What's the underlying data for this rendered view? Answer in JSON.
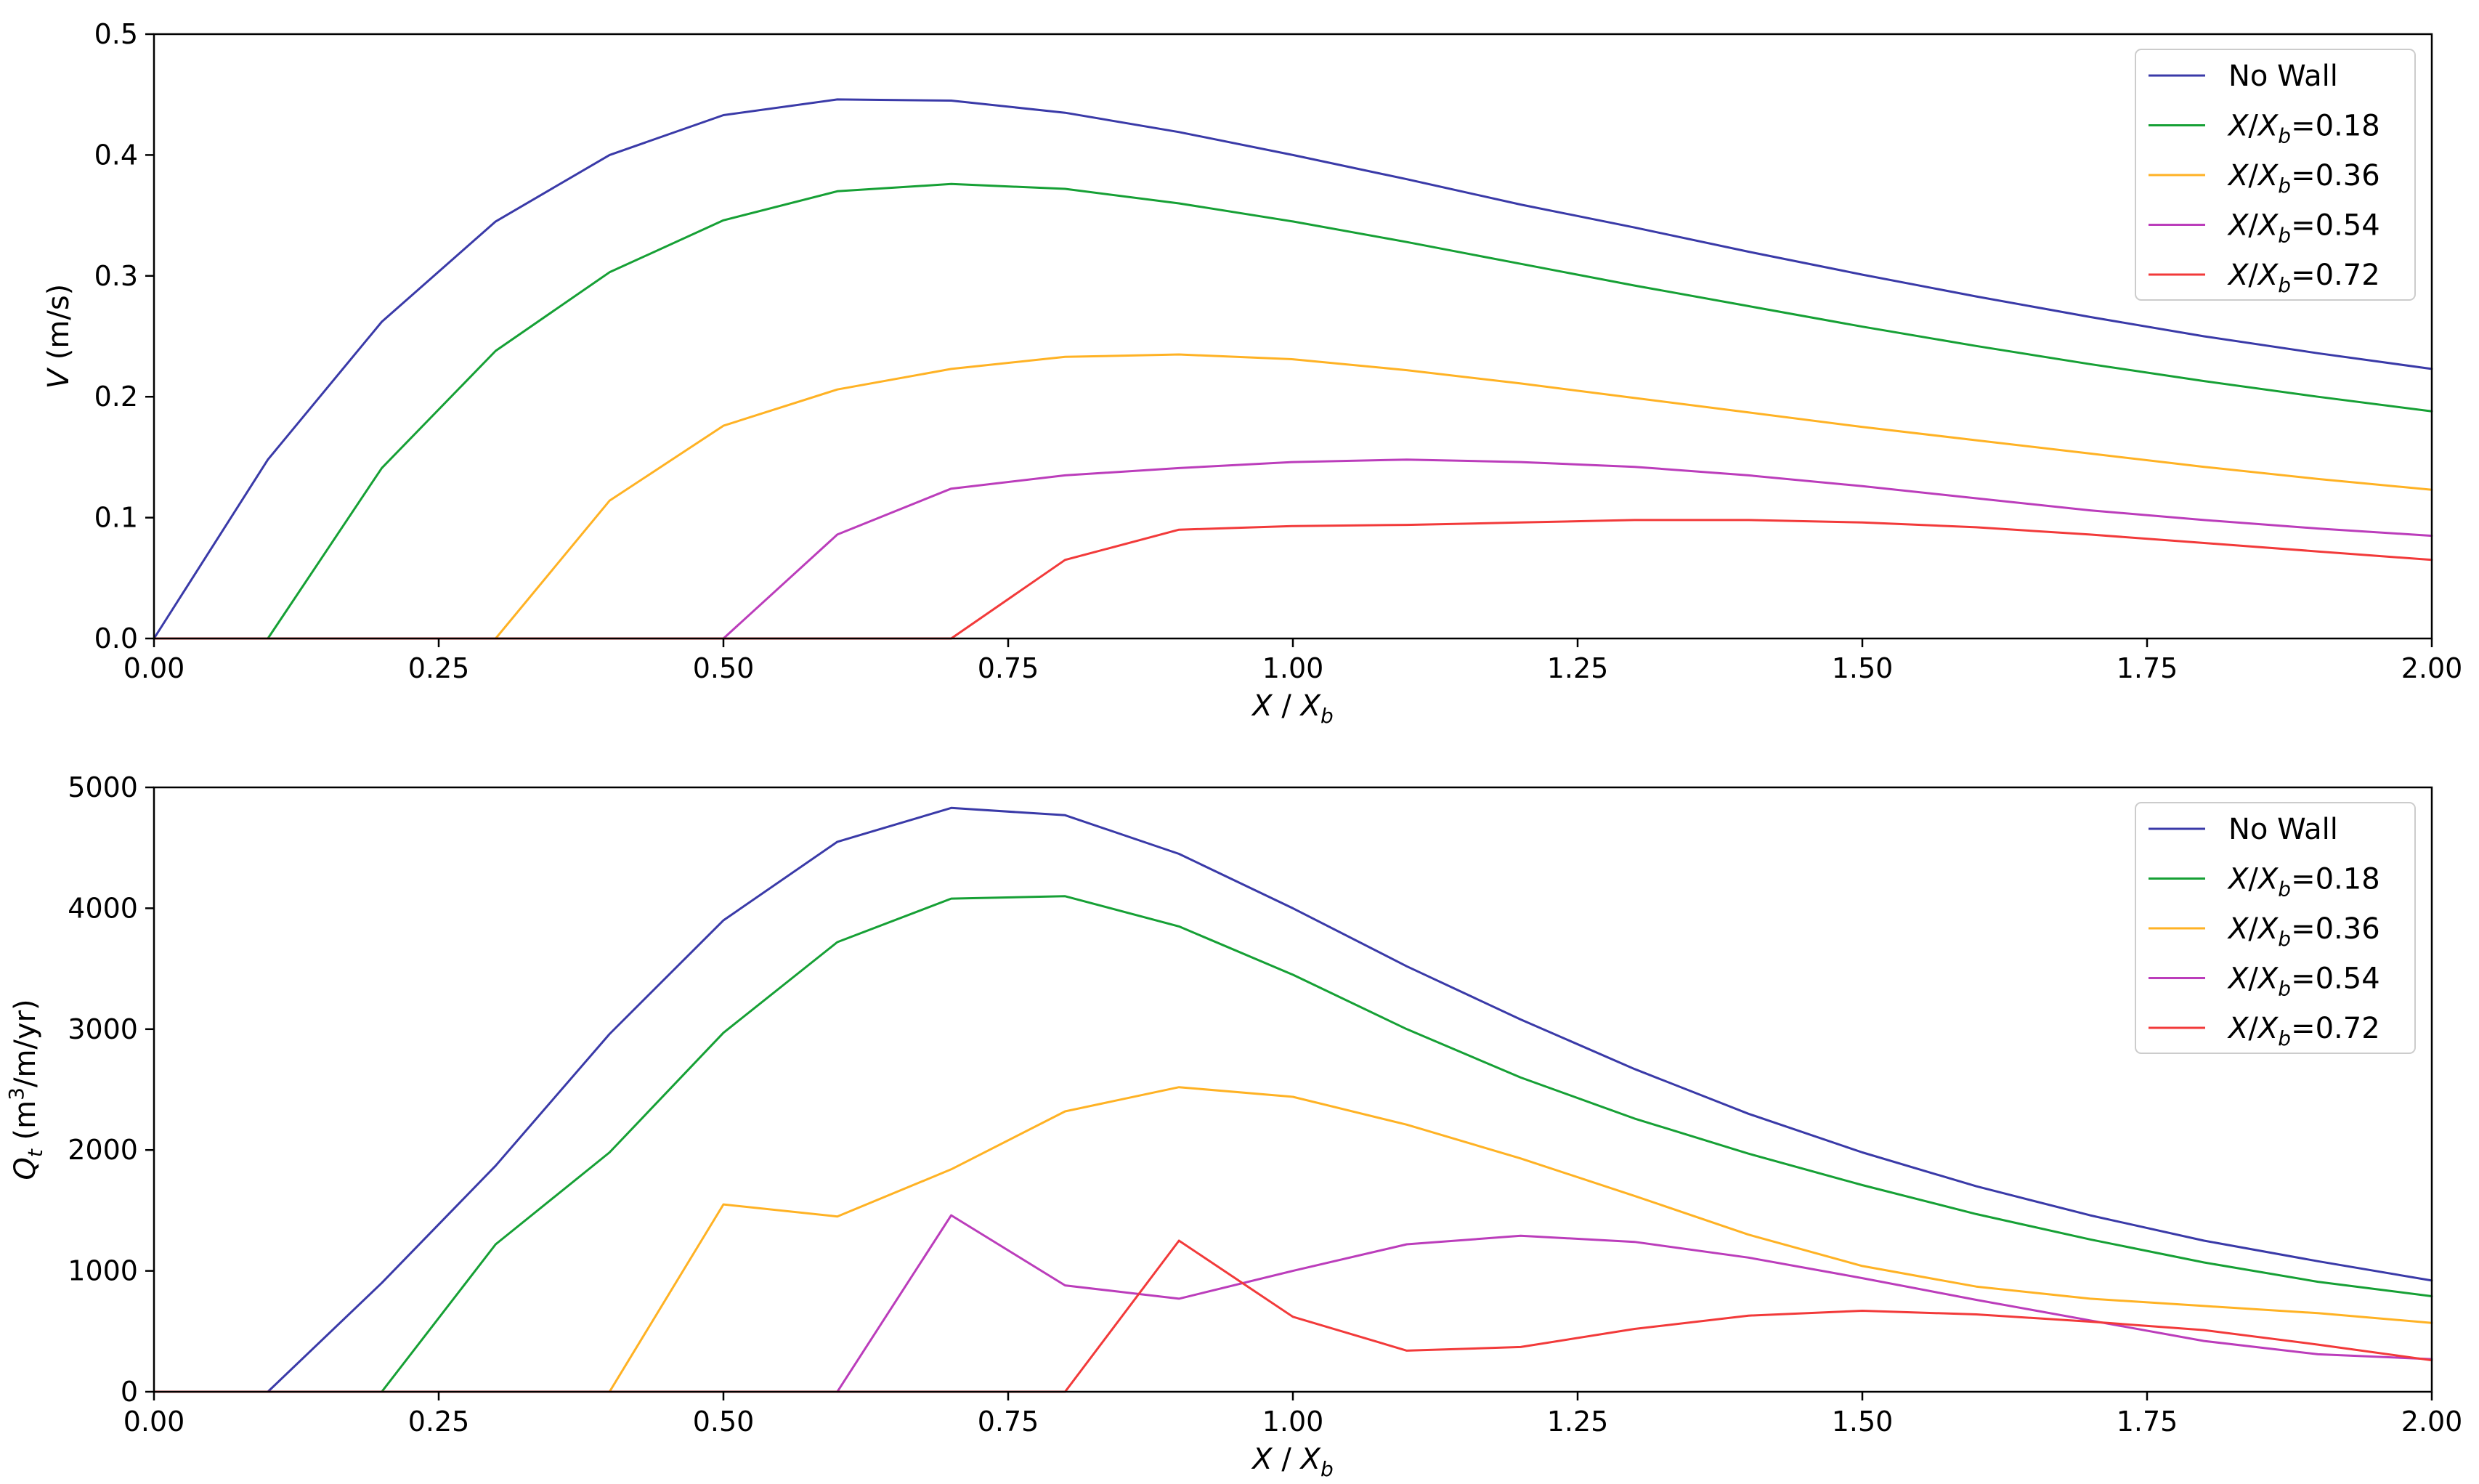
{
  "chart_data": [
    {
      "type": "line",
      "xlabel": "X / X_b",
      "ylabel": "V (m/s)",
      "xlim": [
        0,
        2
      ],
      "ylim": [
        0,
        0.5
      ],
      "xticks": [
        "0.00",
        "0.25",
        "0.50",
        "0.75",
        "1.00",
        "1.25",
        "1.50",
        "1.75",
        "2.00"
      ],
      "yticks": [
        "0.0",
        "0.1",
        "0.2",
        "0.3",
        "0.4",
        "0.5"
      ],
      "grid": false,
      "legend_position": "top-right",
      "x": [
        0.0,
        0.1,
        0.2,
        0.3,
        0.4,
        0.5,
        0.6,
        0.7,
        0.8,
        0.9,
        1.0,
        1.1,
        1.2,
        1.3,
        1.4,
        1.5,
        1.6,
        1.7,
        1.8,
        1.9,
        2.0
      ],
      "series": [
        {
          "name": "No Wall",
          "color": "#3a3aa8",
          "values": [
            0.0,
            0.148,
            0.262,
            0.345,
            0.4,
            0.433,
            0.446,
            0.445,
            0.435,
            0.419,
            0.4,
            0.38,
            0.359,
            0.34,
            0.32,
            0.301,
            0.283,
            0.266,
            0.25,
            0.236,
            0.223
          ]
        },
        {
          "name": "X/X_b=0.18",
          "color": "#16a035",
          "values": [
            0.0,
            0.0,
            0.141,
            0.238,
            0.303,
            0.346,
            0.37,
            0.376,
            0.372,
            0.36,
            0.345,
            0.328,
            0.31,
            0.292,
            0.275,
            0.258,
            0.242,
            0.227,
            0.213,
            0.2,
            0.188
          ]
        },
        {
          "name": "X/X_b=0.36",
          "color": "#ffb224",
          "values": [
            0.0,
            0.0,
            0.0,
            0.0,
            0.114,
            0.176,
            0.206,
            0.223,
            0.233,
            0.235,
            0.231,
            0.222,
            0.211,
            0.199,
            0.187,
            0.175,
            0.164,
            0.153,
            0.142,
            0.132,
            0.123
          ]
        },
        {
          "name": "X/X_b=0.54",
          "color": "#bb3dbb",
          "values": [
            0.0,
            0.0,
            0.0,
            0.0,
            0.0,
            0.0,
            0.086,
            0.124,
            0.135,
            0.141,
            0.146,
            0.148,
            0.146,
            0.142,
            0.135,
            0.126,
            0.116,
            0.106,
            0.098,
            0.091,
            0.085
          ]
        },
        {
          "name": "X/X_b=0.72",
          "color": "#f23a3a",
          "values": [
            0.0,
            0.0,
            0.0,
            0.0,
            0.0,
            0.0,
            0.0,
            0.0,
            0.065,
            0.09,
            0.093,
            0.094,
            0.096,
            0.098,
            0.098,
            0.096,
            0.092,
            0.086,
            0.079,
            0.072,
            0.065
          ]
        }
      ]
    },
    {
      "type": "line",
      "xlabel": "X / X_b",
      "ylabel": "Q_t (m^3/m/yr)",
      "xlim": [
        0,
        2
      ],
      "ylim": [
        0,
        5000
      ],
      "xticks": [
        "0.00",
        "0.25",
        "0.50",
        "0.75",
        "1.00",
        "1.25",
        "1.50",
        "1.75",
        "2.00"
      ],
      "yticks": [
        "0",
        "1000",
        "2000",
        "3000",
        "4000",
        "5000"
      ],
      "grid": false,
      "legend_position": "top-right",
      "x": [
        0.0,
        0.1,
        0.2,
        0.3,
        0.4,
        0.5,
        0.6,
        0.7,
        0.8,
        0.9,
        1.0,
        1.1,
        1.2,
        1.3,
        1.4,
        1.5,
        1.6,
        1.7,
        1.8,
        1.9,
        2.0
      ],
      "series": [
        {
          "name": "No Wall",
          "color": "#3a3aa8",
          "values": [
            0,
            0,
            900,
            1870,
            2960,
            3900,
            4550,
            4830,
            4770,
            4450,
            4000,
            3520,
            3080,
            2670,
            2300,
            1980,
            1700,
            1460,
            1250,
            1080,
            920
          ]
        },
        {
          "name": "X/X_b=0.18",
          "color": "#16a035",
          "values": [
            0,
            0,
            0,
            1220,
            1980,
            2970,
            3720,
            4080,
            4100,
            3850,
            3450,
            3000,
            2600,
            2260,
            1970,
            1710,
            1470,
            1260,
            1070,
            910,
            790
          ]
        },
        {
          "name": "X/X_b=0.36",
          "color": "#ffb224",
          "values": [
            0,
            0,
            0,
            0,
            0,
            1550,
            1450,
            1840,
            2320,
            2520,
            2440,
            2210,
            1930,
            1620,
            1300,
            1040,
            870,
            770,
            710,
            650,
            570
          ]
        },
        {
          "name": "X/X_b=0.54",
          "color": "#bb3dbb",
          "values": [
            0,
            0,
            0,
            0,
            0,
            0,
            0,
            1460,
            880,
            770,
            1000,
            1220,
            1290,
            1240,
            1110,
            940,
            760,
            590,
            420,
            310,
            270
          ]
        },
        {
          "name": "X/X_b=0.72",
          "color": "#f23a3a",
          "values": [
            0,
            0,
            0,
            0,
            0,
            0,
            0,
            0,
            0,
            1250,
            620,
            340,
            370,
            520,
            630,
            670,
            640,
            580,
            510,
            390,
            260
          ]
        }
      ]
    }
  ]
}
